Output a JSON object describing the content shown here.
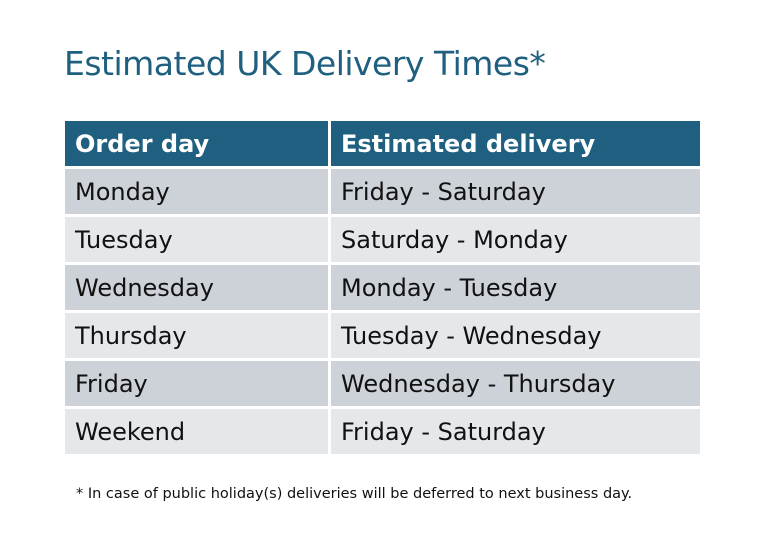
{
  "title": "Estimated UK Delivery Times*",
  "table": {
    "headers": [
      "Order day",
      "Estimated delivery"
    ],
    "rows": [
      [
        "Monday",
        "Friday - Saturday"
      ],
      [
        "Tuesday",
        "Saturday - Monday"
      ],
      [
        "Wednesday",
        "Monday - Tuesday"
      ],
      [
        "Thursday",
        "Tuesday - Wednesday"
      ],
      [
        "Friday",
        "Wednesday - Thursday"
      ],
      [
        "Weekend",
        "Friday - Saturday"
      ]
    ]
  },
  "footnote": "* In case of public holiday(s) deliveries will be deferred to next business day.",
  "colors": {
    "header": "#1f6080",
    "title": "#1f5f7f",
    "row_odd": "#cdd1d8",
    "row_even": "#e5e8eb"
  }
}
